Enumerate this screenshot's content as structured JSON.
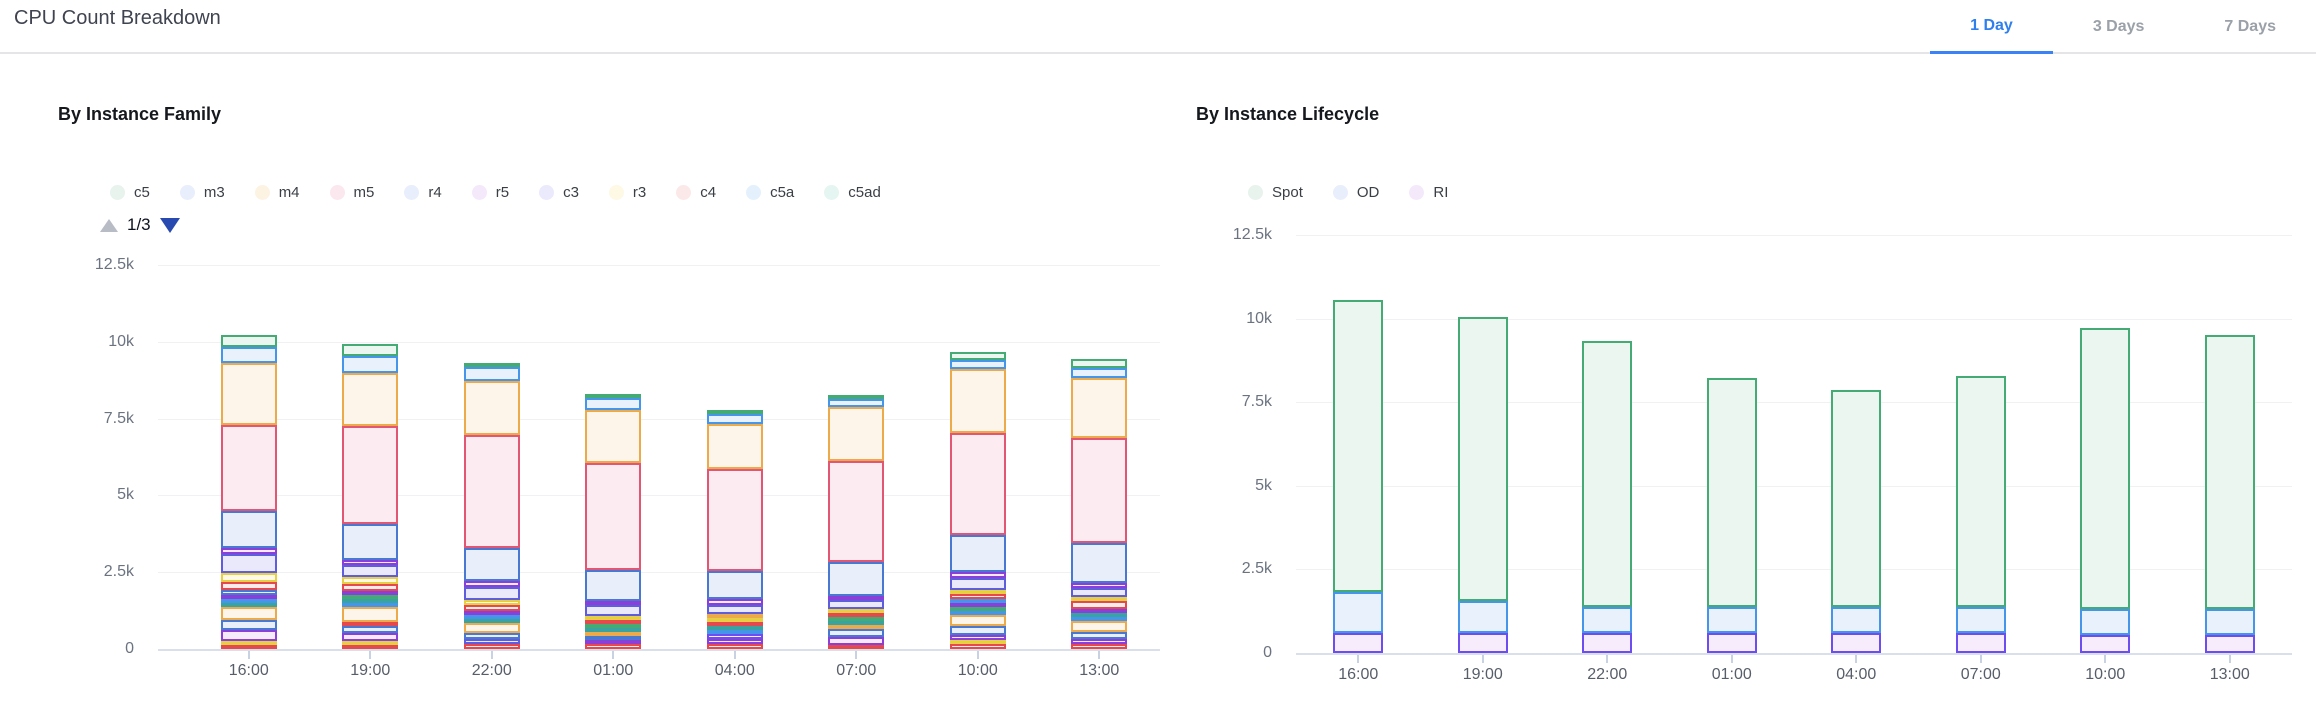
{
  "header": {
    "title": "CPU Count Breakdown",
    "tabs": [
      {
        "label": "1 Day",
        "active": true
      },
      {
        "label": "3 Days",
        "active": false
      },
      {
        "label": "7 Days",
        "active": false
      }
    ]
  },
  "colors": {
    "accent_blue": "#3b82f6",
    "active_tab_text": "#2f80ed",
    "inactive_tab_text": "#9ba1a9",
    "pager_up_gray": "#b8bcc4",
    "pager_down_blue": "#2849b0",
    "axis_line": "#d9e0ec",
    "grid_line": "#f1f1f4",
    "tick_mark": "#c9d2e2",
    "palette": {
      "red": {
        "stroke": "#e5484d",
        "fill": "#fdecec"
      },
      "orange": {
        "stroke": "#edaa4b",
        "fill": "#fdf5ea"
      },
      "yellow": {
        "stroke": "#e6cf44",
        "fill": "#fdf9e6"
      },
      "green": {
        "stroke": "#44ab74",
        "fill": "#eaf6ef"
      },
      "teal": {
        "stroke": "#38a3a0",
        "fill": "#e7f4f3"
      },
      "sky": {
        "stroke": "#4596ea",
        "fill": "#e9f1fc"
      },
      "steel": {
        "stroke": "#4878d1",
        "fill": "#e8eefa"
      },
      "indigo": {
        "stroke": "#5d5ddd",
        "fill": "#eae9fc"
      },
      "violet": {
        "stroke": "#8a3fd9",
        "fill": "#f4eafc"
      },
      "purple": {
        "stroke": "#6d4df0",
        "fill": "#f6ecfb"
      },
      "rose": {
        "stroke": "#e25573",
        "fill": "#fcebf0"
      }
    }
  },
  "chart_data": [
    {
      "id": "family",
      "type": "bar",
      "stacked": true,
      "title": "By Instance Family",
      "legend": [
        {
          "label": "c5",
          "swatch": "#e7f3ec"
        },
        {
          "label": "m3",
          "swatch": "#e8eefb"
        },
        {
          "label": "m4",
          "swatch": "#fdf3e3"
        },
        {
          "label": "m5",
          "swatch": "#fbe8ee"
        },
        {
          "label": "r4",
          "swatch": "#e8eefb"
        },
        {
          "label": "r5",
          "swatch": "#f3e9fb"
        },
        {
          "label": "c3",
          "swatch": "#ebe9fc"
        },
        {
          "label": "r3",
          "swatch": "#fdf9e5"
        },
        {
          "label": "c4",
          "swatch": "#fbe9ea"
        },
        {
          "label": "c5a",
          "swatch": "#e4f1fc"
        },
        {
          "label": "c5ad",
          "swatch": "#e5f5f1"
        }
      ],
      "pagination": {
        "label": "1/3"
      },
      "categories": [
        "16:00",
        "19:00",
        "22:00",
        "01:00",
        "04:00",
        "07:00",
        "10:00",
        "13:00"
      ],
      "ylim": [
        0,
        12500
      ],
      "y_ticks": [
        {
          "v": 0,
          "label": "0"
        },
        {
          "v": 2500,
          "label": "2.5k"
        },
        {
          "v": 5000,
          "label": "5k"
        },
        {
          "v": 7500,
          "label": "7.5k"
        },
        {
          "v": 10000,
          "label": "10k"
        },
        {
          "v": 12500,
          "label": "12.5k"
        }
      ],
      "grid": true,
      "legend_position": "top",
      "note": "stacked segments listed bottom-up; top 11 segments correspond to legend page 1/3 series (c5ad..c5 reading upward)",
      "bars": [
        [
          {
            "c": "red",
            "v": 140
          },
          {
            "c": "yellow",
            "v": 90
          },
          {
            "c": "violet",
            "v": 360
          },
          {
            "c": "steel",
            "v": 300
          },
          {
            "c": "orange",
            "v": 450
          },
          {
            "c": "teal",
            "v": 75
          },
          {
            "c": "sky",
            "v": 85
          },
          {
            "c": "violet",
            "v": 110
          },
          {
            "c": "steel",
            "v": 140
          },
          {
            "c": "red",
            "v": 280
          },
          {
            "c": "yellow",
            "v": 280
          },
          {
            "c": "indigo",
            "v": 630
          },
          {
            "c": "violet",
            "v": 180
          },
          {
            "c": "steel",
            "v": 1210
          },
          {
            "c": "rose",
            "v": 2800
          },
          {
            "c": "orange",
            "v": 2030
          },
          {
            "c": "sky",
            "v": 500
          },
          {
            "c": "green",
            "v": 400
          }
        ],
        [
          {
            "c": "red",
            "v": 140
          },
          {
            "c": "yellow",
            "v": 110
          },
          {
            "c": "violet",
            "v": 250
          },
          {
            "c": "steel",
            "v": 220
          },
          {
            "c": "red",
            "v": 90
          },
          {
            "c": "orange",
            "v": 500
          },
          {
            "c": "sky",
            "v": 80
          },
          {
            "c": "teal",
            "v": 110
          },
          {
            "c": "green",
            "v": 110
          },
          {
            "c": "violet",
            "v": 130
          },
          {
            "c": "red",
            "v": 220
          },
          {
            "c": "yellow",
            "v": 220
          },
          {
            "c": "indigo",
            "v": 400
          },
          {
            "c": "violet",
            "v": 165
          },
          {
            "c": "steel",
            "v": 1190
          },
          {
            "c": "rose",
            "v": 3170
          },
          {
            "c": "orange",
            "v": 1740
          },
          {
            "c": "sky",
            "v": 535
          },
          {
            "c": "green",
            "v": 400
          }
        ],
        [
          {
            "c": "red",
            "v": 150
          },
          {
            "c": "indigo",
            "v": 175
          },
          {
            "c": "steel",
            "v": 195
          },
          {
            "c": "orange",
            "v": 325
          },
          {
            "c": "teal",
            "v": 65
          },
          {
            "c": "sky",
            "v": 130
          },
          {
            "c": "violet",
            "v": 140
          },
          {
            "c": "red",
            "v": 185
          },
          {
            "c": "yellow",
            "v": 165
          },
          {
            "c": "indigo",
            "v": 435
          },
          {
            "c": "violet",
            "v": 195
          },
          {
            "c": "steel",
            "v": 1050
          },
          {
            "c": "rose",
            "v": 3700
          },
          {
            "c": "orange",
            "v": 1750
          },
          {
            "c": "sky",
            "v": 470
          },
          {
            "c": "green",
            "v": 130
          }
        ],
        [
          {
            "c": "red",
            "v": 150
          },
          {
            "c": "violet",
            "v": 140
          },
          {
            "c": "steel",
            "v": 130
          },
          {
            "c": "orange",
            "v": 140
          },
          {
            "c": "teal",
            "v": 75
          },
          {
            "c": "green",
            "v": 75
          },
          {
            "c": "red",
            "v": 130
          },
          {
            "c": "yellow",
            "v": 130
          },
          {
            "c": "indigo",
            "v": 360
          },
          {
            "c": "violet",
            "v": 130
          },
          {
            "c": "steel",
            "v": 1000
          },
          {
            "c": "rose",
            "v": 3500
          },
          {
            "c": "orange",
            "v": 1700
          },
          {
            "c": "sky",
            "v": 410
          },
          {
            "c": "green",
            "v": 130
          }
        ],
        [
          {
            "c": "red",
            "v": 150
          },
          {
            "c": "violet",
            "v": 170
          },
          {
            "c": "purple",
            "v": 155
          },
          {
            "c": "sky",
            "v": 110
          },
          {
            "c": "teal",
            "v": 75
          },
          {
            "c": "red",
            "v": 140
          },
          {
            "c": "yellow",
            "v": 140
          },
          {
            "c": "orange",
            "v": 110
          },
          {
            "c": "indigo",
            "v": 300
          },
          {
            "c": "violet",
            "v": 185
          },
          {
            "c": "steel",
            "v": 900
          },
          {
            "c": "rose",
            "v": 3340
          },
          {
            "c": "orange",
            "v": 1450
          },
          {
            "c": "sky",
            "v": 325
          },
          {
            "c": "green",
            "v": 130
          }
        ],
        [
          {
            "c": "red",
            "v": 130
          },
          {
            "c": "violet",
            "v": 260
          },
          {
            "c": "steel",
            "v": 260
          },
          {
            "c": "orange",
            "v": 110
          },
          {
            "c": "teal",
            "v": 110
          },
          {
            "c": "green",
            "v": 110
          },
          {
            "c": "red",
            "v": 110
          },
          {
            "c": "yellow",
            "v": 110
          },
          {
            "c": "indigo",
            "v": 295
          },
          {
            "c": "violet",
            "v": 110
          },
          {
            "c": "steel",
            "v": 1100
          },
          {
            "c": "rose",
            "v": 3300
          },
          {
            "c": "orange",
            "v": 1750
          },
          {
            "c": "sky",
            "v": 270
          },
          {
            "c": "green",
            "v": 130
          }
        ],
        [
          {
            "c": "red",
            "v": 170
          },
          {
            "c": "yellow",
            "v": 110
          },
          {
            "c": "violet",
            "v": 150
          },
          {
            "c": "steel",
            "v": 290
          },
          {
            "c": "orange",
            "v": 370
          },
          {
            "c": "sky",
            "v": 110
          },
          {
            "c": "green",
            "v": 110
          },
          {
            "c": "violet",
            "v": 140
          },
          {
            "c": "sky",
            "v": 130
          },
          {
            "c": "red",
            "v": 150
          },
          {
            "c": "yellow",
            "v": 130
          },
          {
            "c": "indigo",
            "v": 380
          },
          {
            "c": "violet",
            "v": 220
          },
          {
            "c": "steel",
            "v": 1200
          },
          {
            "c": "rose",
            "v": 3300
          },
          {
            "c": "orange",
            "v": 2100
          },
          {
            "c": "sky",
            "v": 300
          },
          {
            "c": "green",
            "v": 250
          }
        ],
        [
          {
            "c": "red",
            "v": 150
          },
          {
            "c": "violet",
            "v": 185
          },
          {
            "c": "steel",
            "v": 220
          },
          {
            "c": "orange",
            "v": 360
          },
          {
            "c": "sky",
            "v": 110
          },
          {
            "c": "teal",
            "v": 75
          },
          {
            "c": "violet",
            "v": 110
          },
          {
            "c": "red",
            "v": 250
          },
          {
            "c": "yellow",
            "v": 130
          },
          {
            "c": "indigo",
            "v": 295
          },
          {
            "c": "violet",
            "v": 185
          },
          {
            "c": "steel",
            "v": 1300
          },
          {
            "c": "rose",
            "v": 3400
          },
          {
            "c": "orange",
            "v": 1950
          },
          {
            "c": "sky",
            "v": 325
          },
          {
            "c": "green",
            "v": 290
          }
        ]
      ]
    },
    {
      "id": "lifecycle",
      "type": "bar",
      "stacked": true,
      "title": "By Instance Lifecycle",
      "legend": [
        {
          "label": "Spot",
          "swatch": "#e7f3ec"
        },
        {
          "label": "OD",
          "swatch": "#e8eefb"
        },
        {
          "label": "RI",
          "swatch": "#f4e9fb"
        }
      ],
      "categories": [
        "16:00",
        "19:00",
        "22:00",
        "01:00",
        "04:00",
        "07:00",
        "10:00",
        "13:00"
      ],
      "ylim": [
        0,
        12500
      ],
      "y_ticks": [
        {
          "v": 0,
          "label": "0"
        },
        {
          "v": 2500,
          "label": "2.5k"
        },
        {
          "v": 5000,
          "label": "5k"
        },
        {
          "v": 7500,
          "label": "7.5k"
        },
        {
          "v": 10000,
          "label": "10k"
        },
        {
          "v": 12500,
          "label": "12.5k"
        }
      ],
      "grid": true,
      "legend_position": "top",
      "note": "series listed bottom-up in stack order",
      "series": [
        {
          "name": "RI",
          "color": "purple",
          "values": [
            610,
            590,
            590,
            590,
            590,
            590,
            530,
            535
          ]
        },
        {
          "name": "OD",
          "color": "sky",
          "values": [
            1210,
            980,
            800,
            790,
            790,
            800,
            790,
            785
          ]
        },
        {
          "name": "Spot",
          "color": "green",
          "values": [
            8730,
            8480,
            7950,
            6840,
            6480,
            6900,
            8390,
            8180
          ]
        }
      ]
    }
  ]
}
